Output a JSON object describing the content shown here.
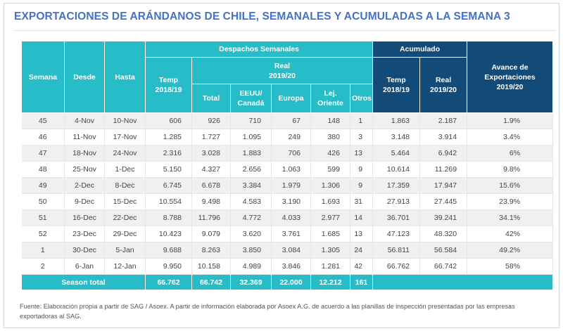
{
  "title": "EXPORTACIONES DE ARÁNDANOS DE CHILE, SEMANALES Y ACUMULADAS A LA SEMANA 3",
  "headers": {
    "semana": "Semana",
    "desde": "Desde",
    "hasta": "Hasta",
    "despachos": "Despachos Semanales",
    "temp_line1": "Temp",
    "temp_line2": "2018/19",
    "real_line1": "Real",
    "real_line2": "2019/20",
    "total": "Total",
    "eeuu_line1": "EEUU/",
    "eeuu_line2": "Canadá",
    "europa": "Europa",
    "lej_line1": "Lej.",
    "lej_line2": "Oriente",
    "otros": "Otros",
    "acumulado": "Acumulado",
    "acum_temp_line1": "Temp",
    "acum_temp_line2": "2018/19",
    "acum_real_line1": "Real",
    "acum_real_line2": "2019/20",
    "avance_line1": "Avance de",
    "avance_line2": "Exportaciones",
    "avance_line3": "2019/20"
  },
  "rows": [
    [
      "45",
      "4-Nov",
      "10-Nov",
      "606",
      "926",
      "710",
      "67",
      "148",
      "1",
      "1.863",
      "2.187",
      "1.9%"
    ],
    [
      "46",
      "11-Nov",
      "17-Nov",
      "1.285",
      "1.727",
      "1.095",
      "249",
      "380",
      "3",
      "3.148",
      "3.914",
      "3.4%"
    ],
    [
      "47",
      "18-Nov",
      "24-Nov",
      "2.316",
      "3.028",
      "1.883",
      "706",
      "426",
      "13",
      "5.464",
      "6.942",
      "6%"
    ],
    [
      "48",
      "25-Nov",
      "1-Dec",
      "5.150",
      "4.327",
      "2.656",
      "1.063",
      "599",
      "9",
      "10.614",
      "11.269",
      "9.8%"
    ],
    [
      "49",
      "2-Dec",
      "8-Dec",
      "6.745",
      "6.678",
      "3.384",
      "1.979",
      "1.306",
      "9",
      "17.359",
      "17.947",
      "15.6%"
    ],
    [
      "50",
      "9-Dec",
      "15-Dec",
      "10.554",
      "9.498",
      "4.583",
      "3.190",
      "1.693",
      "31",
      "27.913",
      "27.445",
      "23.9%"
    ],
    [
      "51",
      "16-Dec",
      "22-Dec",
      "8.788",
      "11.796",
      "4.772",
      "4.033",
      "2.977",
      "14",
      "36.701",
      "39.241",
      "34.1%"
    ],
    [
      "52",
      "23-Dec",
      "29-Dec",
      "10.423",
      "9.079",
      "3.620",
      "3.761",
      "1.685",
      "13",
      "47.123",
      "48.320",
      "42%"
    ],
    [
      "1",
      "30-Dec",
      "5-Jan",
      "9.688",
      "8.263",
      "3.850",
      "3.084",
      "1.305",
      "24",
      "56.811",
      "56.584",
      "49.2%"
    ],
    [
      "2",
      "6-Jan",
      "12-Jan",
      "9.950",
      "10.158",
      "4.989",
      "3.846",
      "1.281",
      "42",
      "66.762",
      "66.742",
      "58%"
    ]
  ],
  "season_total": {
    "label": "Season total",
    "temp": "66.762",
    "total": "66.742",
    "eeuu": "32.369",
    "europa": "22.000",
    "lej": "12.212",
    "otros": "161"
  },
  "source": "Fuente: Elaboración propia a partir de SAG / Asoex. A partir de información elaborada por Asoex A.G. de acuerdo a las planillas de inspección presentadas por las empresas exportadoras al SAG.",
  "colors": {
    "title": "#4472c4",
    "teal": "#26bcc8",
    "navy": "#124a78"
  }
}
